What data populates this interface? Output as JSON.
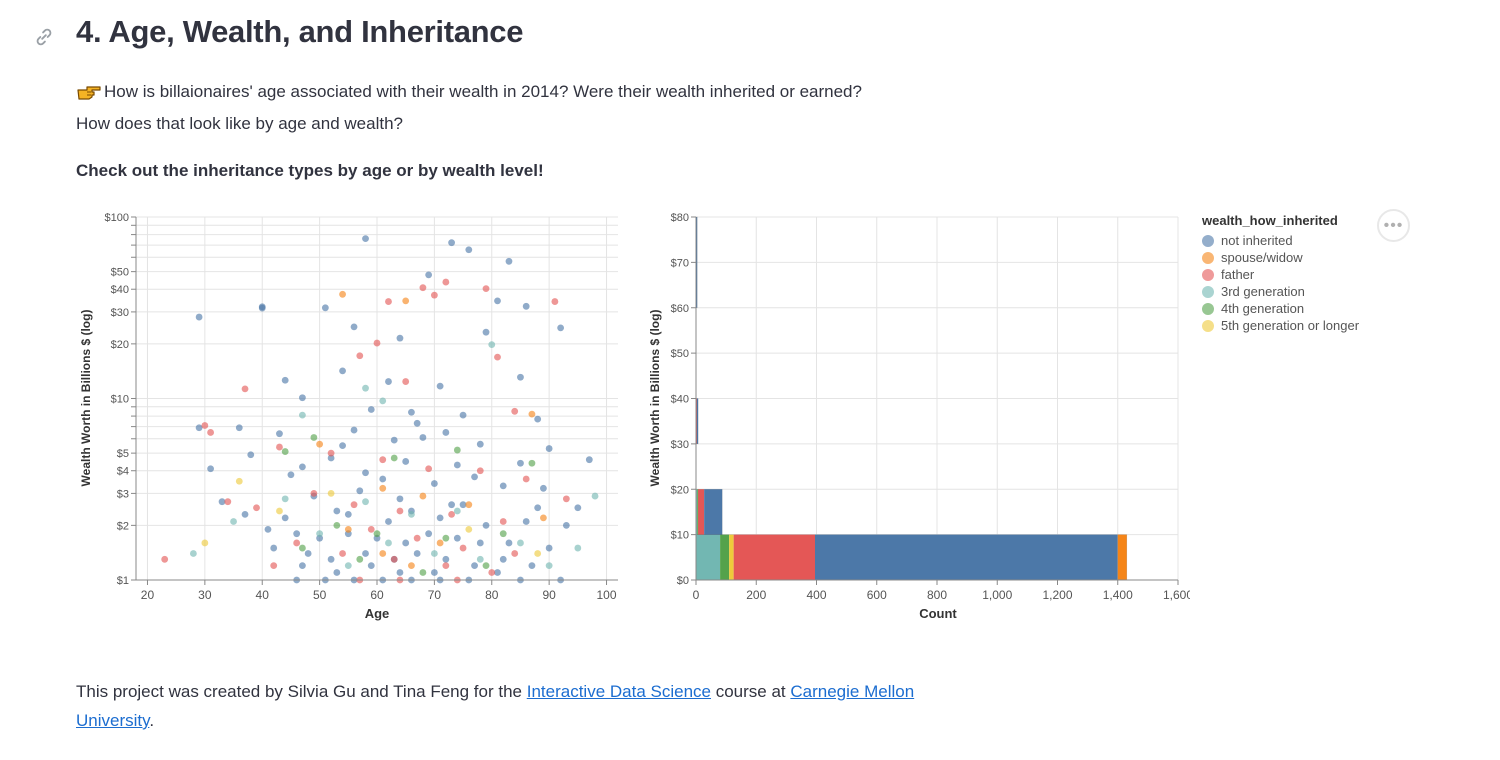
{
  "header": {
    "title": "4. Age, Wealth, and Inheritance",
    "question_line1": "How is billaionaires' age associated with their wealth in 2014? Were their wealth inherited or earned?",
    "question_line2": "How does that look like by age and wealth?",
    "instruction": "Check out the inheritance types by age or by wealth level!"
  },
  "icons": {
    "anchor": "link-icon",
    "pointer": "pointing-hand-icon",
    "menu": "more-options-icon"
  },
  "menu_button": {
    "label": "•••"
  },
  "legend": {
    "title": "wealth_how_inherited",
    "items": [
      {
        "label": "not inherited",
        "color": "#4c78a8"
      },
      {
        "label": "spouse/widow",
        "color": "#f58518"
      },
      {
        "label": "father",
        "color": "#e45756"
      },
      {
        "label": "3rd generation",
        "color": "#72b7b2"
      },
      {
        "label": "4th generation",
        "color": "#54a24b"
      },
      {
        "label": "5th generation or longer",
        "color": "#eeca3b"
      }
    ]
  },
  "chart_data": [
    {
      "type": "scatter",
      "title": "",
      "xlabel": "Age",
      "ylabel": "Wealth Worth in Billions $ (log)",
      "xlim": [
        18,
        102
      ],
      "ylim": [
        1,
        100
      ],
      "yscale": "log",
      "grid": true,
      "x_ticks": [
        "20",
        "30",
        "40",
        "50",
        "60",
        "70",
        "80",
        "90",
        "100"
      ],
      "y_ticks": [
        {
          "value": 1,
          "label": "$1"
        },
        {
          "value": 2,
          "label": "$2"
        },
        {
          "value": 3,
          "label": "$3"
        },
        {
          "value": 4,
          "label": "$4"
        },
        {
          "value": 5,
          "label": "$5"
        },
        {
          "value": 10,
          "label": "$10"
        },
        {
          "value": 20,
          "label": "$20"
        },
        {
          "value": 30,
          "label": "$30"
        },
        {
          "value": 40,
          "label": "$40"
        },
        {
          "value": 50,
          "label": "$50"
        },
        {
          "value": 100,
          "label": "$100"
        }
      ],
      "series": [
        {
          "name": "not inherited",
          "points": [
            [
              29,
              28.1
            ],
            [
              29,
              6.9
            ],
            [
              40,
              31.5
            ],
            [
              40,
              32
            ],
            [
              51,
              31.6
            ],
            [
              58,
              76
            ],
            [
              73,
              72.2
            ],
            [
              76,
              66
            ],
            [
              83,
              57
            ],
            [
              69,
              48
            ],
            [
              81,
              34.5
            ],
            [
              86,
              32.2
            ],
            [
              92,
              24.5
            ],
            [
              56,
              24.8
            ],
            [
              64,
              21.5
            ],
            [
              79,
              23.2
            ],
            [
              54,
              14.2
            ],
            [
              85,
              13.1
            ],
            [
              62,
              12.4
            ],
            [
              71,
              11.7
            ],
            [
              44,
              12.6
            ],
            [
              47,
              10.1
            ],
            [
              59,
              8.7
            ],
            [
              66,
              8.4
            ],
            [
              75,
              8.1
            ],
            [
              88,
              7.7
            ],
            [
              36,
              6.9
            ],
            [
              43,
              6.4
            ],
            [
              56,
              6.7
            ],
            [
              68,
              6.1
            ],
            [
              78,
              5.6
            ],
            [
              90,
              5.3
            ],
            [
              31,
              4.1
            ],
            [
              38,
              4.9
            ],
            [
              52,
              4.7
            ],
            [
              65,
              4.5
            ],
            [
              74,
              4.3
            ],
            [
              85,
              4.4
            ],
            [
              97,
              4.6
            ],
            [
              45,
              3.8
            ],
            [
              61,
              3.6
            ],
            [
              70,
              3.4
            ],
            [
              82,
              3.3
            ],
            [
              33,
              2.7
            ],
            [
              49,
              2.9
            ],
            [
              57,
              3.1
            ],
            [
              64,
              2.8
            ],
            [
              73,
              2.6
            ],
            [
              88,
              2.5
            ],
            [
              95,
              2.5
            ],
            [
              37,
              2.3
            ],
            [
              44,
              2.2
            ],
            [
              53,
              2.4
            ],
            [
              62,
              2.1
            ],
            [
              71,
              2.2
            ],
            [
              79,
              2.0
            ],
            [
              86,
              2.1
            ],
            [
              93,
              2.0
            ],
            [
              41,
              1.9
            ],
            [
              46,
              1.8
            ],
            [
              50,
              1.7
            ],
            [
              55,
              1.8
            ],
            [
              60,
              1.7
            ],
            [
              65,
              1.6
            ],
            [
              69,
              1.8
            ],
            [
              74,
              1.7
            ],
            [
              78,
              1.6
            ],
            [
              83,
              1.6
            ],
            [
              90,
              1.5
            ],
            [
              48,
              1.4
            ],
            [
              52,
              1.3
            ],
            [
              58,
              1.4
            ],
            [
              63,
              1.3
            ],
            [
              67,
              1.4
            ],
            [
              72,
              1.3
            ],
            [
              77,
              1.2
            ],
            [
              82,
              1.3
            ],
            [
              87,
              1.2
            ],
            [
              42,
              1.5
            ],
            [
              47,
              1.2
            ],
            [
              53,
              1.1
            ],
            [
              59,
              1.2
            ],
            [
              64,
              1.1
            ],
            [
              70,
              1.1
            ],
            [
              76,
              1.0
            ],
            [
              81,
              1.1
            ],
            [
              85,
              1.0
            ],
            [
              46,
              1.0
            ],
            [
              51,
              1.0
            ],
            [
              56,
              1.0
            ],
            [
              61,
              1.0
            ],
            [
              66,
              1.0
            ],
            [
              71,
              1.0
            ],
            [
              92,
              1.0
            ],
            [
              54,
              5.5
            ],
            [
              63,
              5.9
            ],
            [
              67,
              7.3
            ],
            [
              72,
              6.5
            ],
            [
              47,
              4.2
            ],
            [
              58,
              3.9
            ],
            [
              77,
              3.7
            ],
            [
              89,
              3.2
            ],
            [
              55,
              2.3
            ],
            [
              66,
              2.4
            ],
            [
              75,
              2.6
            ]
          ]
        },
        {
          "name": "spouse/widow",
          "points": [
            [
              54,
              37.5
            ],
            [
              65,
              34.5
            ],
            [
              87,
              8.2
            ],
            [
              50,
              5.6
            ],
            [
              61,
              3.2
            ],
            [
              68,
              2.9
            ],
            [
              76,
              2.6
            ],
            [
              89,
              2.2
            ],
            [
              71,
              1.6
            ],
            [
              61,
              1.4
            ],
            [
              55,
              1.9
            ],
            [
              66,
              1.2
            ]
          ]
        },
        {
          "name": "father",
          "points": [
            [
              23,
              1.3
            ],
            [
              31,
              6.5
            ],
            [
              30,
              7.1
            ],
            [
              37,
              11.3
            ],
            [
              34,
              2.7
            ],
            [
              39,
              2.5
            ],
            [
              42,
              1.2
            ],
            [
              57,
              17.2
            ],
            [
              68,
              40.8
            ],
            [
              72,
              43.8
            ],
            [
              79,
              40.3
            ],
            [
              70,
              37.1
            ],
            [
              91,
              34.2
            ],
            [
              62,
              34.2
            ],
            [
              60,
              20.2
            ],
            [
              81,
              16.9
            ],
            [
              84,
              8.5
            ],
            [
              65,
              12.4
            ],
            [
              43,
              5.4
            ],
            [
              52,
              5.0
            ],
            [
              61,
              4.6
            ],
            [
              69,
              4.1
            ],
            [
              78,
              4.0
            ],
            [
              86,
              3.6
            ],
            [
              93,
              2.8
            ],
            [
              49,
              3.0
            ],
            [
              56,
              2.6
            ],
            [
              64,
              2.4
            ],
            [
              73,
              2.3
            ],
            [
              82,
              2.1
            ],
            [
              59,
              1.9
            ],
            [
              67,
              1.7
            ],
            [
              75,
              1.5
            ],
            [
              84,
              1.4
            ],
            [
              46,
              1.6
            ],
            [
              54,
              1.4
            ],
            [
              63,
              1.3
            ],
            [
              72,
              1.2
            ],
            [
              80,
              1.1
            ],
            [
              57,
              1.0
            ],
            [
              64,
              1.0
            ],
            [
              74,
              1.0
            ]
          ]
        },
        {
          "name": "3rd generation",
          "points": [
            [
              28,
              1.4
            ],
            [
              35,
              2.1
            ],
            [
              47,
              8.1
            ],
            [
              58,
              11.4
            ],
            [
              80,
              19.8
            ],
            [
              61,
              9.7
            ],
            [
              44,
              2.8
            ],
            [
              58,
              2.7
            ],
            [
              66,
              2.3
            ],
            [
              74,
              2.4
            ],
            [
              98,
              2.9
            ],
            [
              95,
              1.5
            ],
            [
              50,
              1.8
            ],
            [
              62,
              1.6
            ],
            [
              70,
              1.4
            ],
            [
              85,
              1.6
            ],
            [
              55,
              1.2
            ],
            [
              78,
              1.3
            ],
            [
              90,
              1.2
            ]
          ]
        },
        {
          "name": "4th generation",
          "points": [
            [
              49,
              6.1
            ],
            [
              44,
              5.1
            ],
            [
              63,
              4.7
            ],
            [
              74,
              5.2
            ],
            [
              87,
              4.4
            ],
            [
              53,
              2.0
            ],
            [
              60,
              1.8
            ],
            [
              72,
              1.7
            ],
            [
              82,
              1.8
            ],
            [
              47,
              1.5
            ],
            [
              57,
              1.3
            ],
            [
              68,
              1.1
            ],
            [
              79,
              1.2
            ]
          ]
        },
        {
          "name": "5th generation or longer",
          "points": [
            [
              36,
              3.5
            ],
            [
              30,
              1.6
            ],
            [
              43,
              2.4
            ],
            [
              52,
              3.0
            ],
            [
              76,
              1.9
            ],
            [
              88,
              1.4
            ]
          ]
        }
      ]
    },
    {
      "type": "bar",
      "orientation": "horizontal",
      "stacked": true,
      "title": "",
      "xlabel": "Count",
      "ylabel": "Wealth Worth in Billions $ (log)",
      "xlim": [
        0,
        1600
      ],
      "ylim": [
        0,
        80
      ],
      "grid": true,
      "x_ticks": [
        "0",
        "200",
        "400",
        "600",
        "800",
        "1,000",
        "1,200",
        "1,400",
        "1,600"
      ],
      "y_ticks": [
        "$0",
        "$10",
        "$20",
        "$30",
        "$40",
        "$50",
        "$60",
        "$70",
        "$80"
      ],
      "bins": [
        {
          "range": [
            0,
            10
          ],
          "segments": [
            {
              "name": "3rd generation",
              "value": 80
            },
            {
              "name": "4th generation",
              "value": 30
            },
            {
              "name": "5th generation or longer",
              "value": 15
            },
            {
              "name": "father",
              "value": 270
            },
            {
              "name": "not inherited",
              "value": 1005
            },
            {
              "name": "spouse/widow",
              "value": 30
            }
          ]
        },
        {
          "range": [
            10,
            20
          ],
          "segments": [
            {
              "name": "3rd generation",
              "value": 4
            },
            {
              "name": "4th generation",
              "value": 3
            },
            {
              "name": "father",
              "value": 20
            },
            {
              "name": "not inherited",
              "value": 60
            }
          ]
        },
        {
          "range": [
            30,
            40
          ],
          "segments": [
            {
              "name": "father",
              "value": 3
            },
            {
              "name": "not inherited",
              "value": 4
            }
          ]
        },
        {
          "range": [
            60,
            80
          ],
          "segments": [
            {
              "name": "not inherited",
              "value": 2
            }
          ]
        }
      ]
    }
  ],
  "footer": {
    "text1": "This project was created by Silvia Gu and Tina Feng for the ",
    "link1": "Interactive Data Science",
    "text2": " course at ",
    "link2": "Carnegie Mellon University",
    "text3": "."
  }
}
